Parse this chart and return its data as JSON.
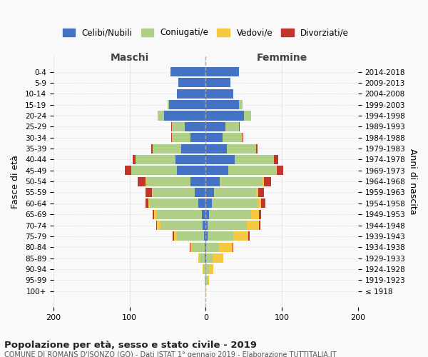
{
  "age_groups": [
    "100+",
    "95-99",
    "90-94",
    "85-89",
    "80-84",
    "75-79",
    "70-74",
    "65-69",
    "60-64",
    "55-59",
    "50-54",
    "45-49",
    "40-44",
    "35-39",
    "30-34",
    "25-29",
    "20-24",
    "15-19",
    "10-14",
    "5-9",
    "0-4"
  ],
  "birth_years": [
    "≤ 1918",
    "1919-1923",
    "1924-1928",
    "1929-1933",
    "1934-1938",
    "1939-1943",
    "1944-1948",
    "1949-1953",
    "1954-1958",
    "1959-1963",
    "1964-1968",
    "1969-1973",
    "1974-1978",
    "1979-1983",
    "1984-1988",
    "1989-1993",
    "1994-1998",
    "1999-2003",
    "2004-2008",
    "2009-2013",
    "2014-2018"
  ],
  "males": {
    "celibi": [
      0,
      0,
      0,
      1,
      1,
      2,
      4,
      5,
      10,
      14,
      20,
      38,
      40,
      32,
      20,
      28,
      55,
      48,
      38,
      36,
      46
    ],
    "coniugati": [
      0,
      1,
      3,
      7,
      17,
      36,
      55,
      60,
      63,
      56,
      58,
      60,
      52,
      38,
      24,
      16,
      8,
      2,
      0,
      0,
      0
    ],
    "vedovi": [
      0,
      0,
      1,
      2,
      2,
      4,
      5,
      3,
      2,
      1,
      1,
      0,
      0,
      0,
      0,
      0,
      0,
      0,
      0,
      0,
      0
    ],
    "divorziati": [
      0,
      0,
      0,
      0,
      1,
      1,
      1,
      2,
      4,
      8,
      10,
      8,
      4,
      2,
      1,
      1,
      0,
      0,
      0,
      0,
      0
    ]
  },
  "females": {
    "nubili": [
      0,
      0,
      0,
      1,
      1,
      2,
      2,
      4,
      8,
      11,
      18,
      30,
      38,
      28,
      22,
      26,
      50,
      44,
      36,
      32,
      44
    ],
    "coniugate": [
      0,
      2,
      4,
      8,
      16,
      34,
      52,
      56,
      60,
      55,
      57,
      62,
      52,
      38,
      26,
      18,
      10,
      4,
      0,
      0,
      0
    ],
    "vedove": [
      1,
      2,
      6,
      14,
      18,
      20,
      16,
      10,
      5,
      3,
      1,
      1,
      0,
      0,
      0,
      0,
      0,
      0,
      0,
      0,
      0
    ],
    "divorziate": [
      0,
      0,
      0,
      0,
      1,
      2,
      2,
      3,
      5,
      7,
      10,
      9,
      5,
      2,
      1,
      1,
      0,
      0,
      0,
      0,
      0
    ]
  },
  "colors": {
    "celibi_nubili": "#4472C4",
    "coniugati": "#AECF85",
    "vedovi": "#F5C842",
    "divorziati": "#C0362C"
  },
  "xlim": 200,
  "title": "Popolazione per età, sesso e stato civile - 2019",
  "subtitle": "COMUNE DI ROMANS D'ISONZO (GO) - Dati ISTAT 1° gennaio 2019 - Elaborazione TUTTITALIA.IT",
  "ylabel": "Fasce di età",
  "ylabel_right": "Anni di nascita",
  "legend_labels": [
    "Celibi/Nubili",
    "Coniugati/e",
    "Vedovi/e",
    "Divorziati/e"
  ],
  "maschi_label": "Maschi",
  "femmine_label": "Femmine",
  "background_color": "#f9f9f9",
  "grid_color": "#cccccc"
}
